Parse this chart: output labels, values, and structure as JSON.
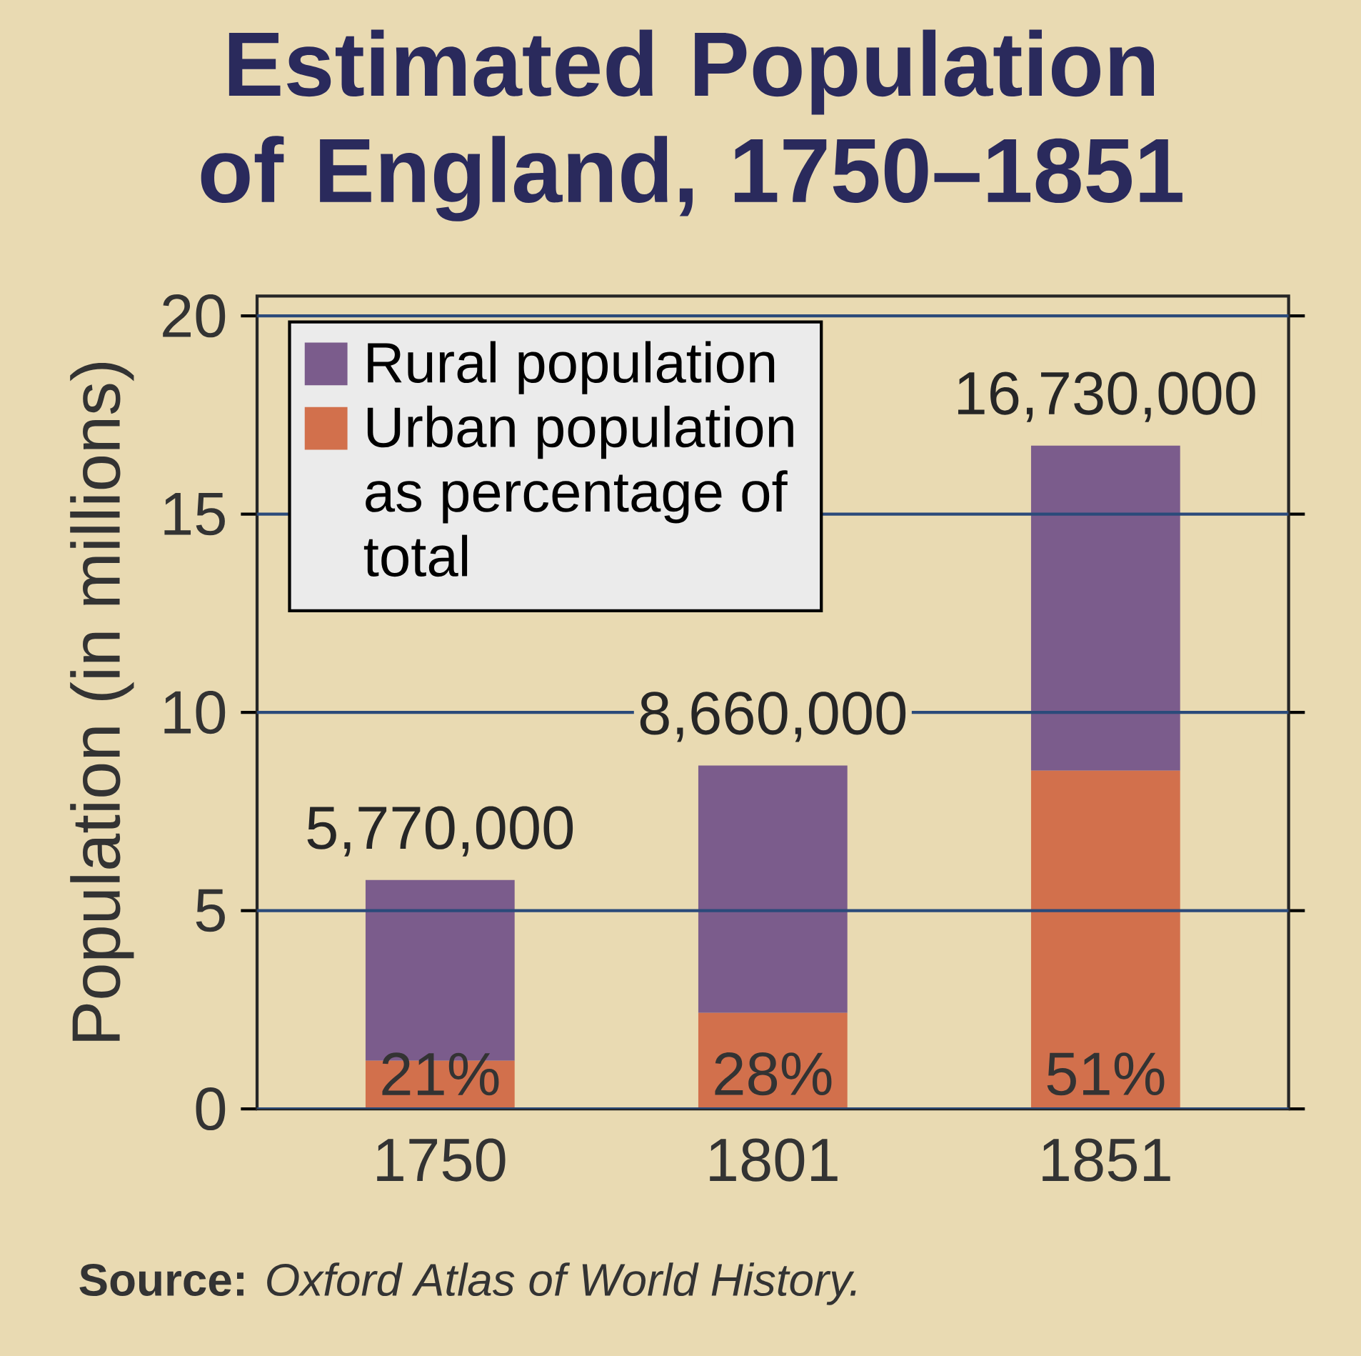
{
  "chart_data": {
    "type": "bar",
    "stacked": true,
    "title": "Estimated Population of England, 1750–1851",
    "ylabel": "Population (in millions)",
    "categories": [
      "1750",
      "1801",
      "1851"
    ],
    "series": [
      {
        "name": "Urban population as percentage of total",
        "color": "#d2704c",
        "values": [
          1.21,
          2.42,
          8.53
        ]
      },
      {
        "name": "Rural population",
        "color": "#7b5c8c",
        "values": [
          4.56,
          6.24,
          8.2
        ]
      }
    ],
    "totals": [
      "5,770,000",
      "8,660,000",
      "16,730,000"
    ],
    "ylim": [
      0,
      20.5
    ],
    "yticks": [
      0,
      5,
      10,
      15,
      20
    ],
    "grid": "y",
    "legend": "top left",
    "annotations": [
      "21%",
      "28%",
      "51%",
      "**Source:** *Oxford Atlas of World History.*"
    ]
  }
}
